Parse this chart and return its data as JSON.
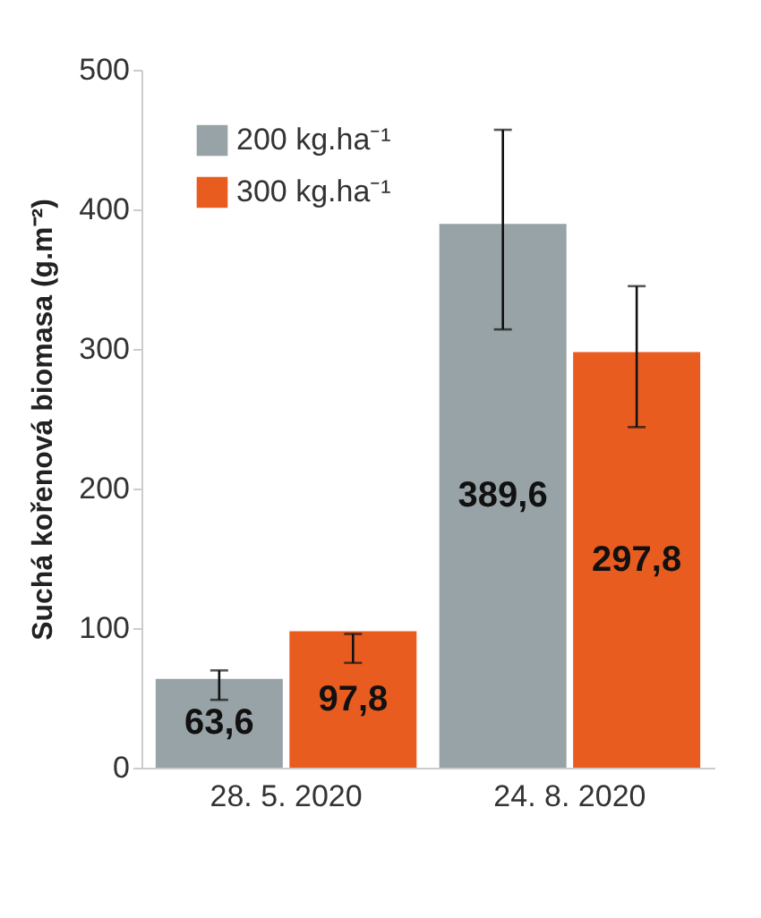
{
  "chart_data": {
    "type": "bar",
    "ylabel": "Suchá kořenová biomasa (g.m⁻²)",
    "categories": [
      "28. 5. 2020",
      "24. 8. 2020"
    ],
    "series": [
      {
        "name": "200 kg.ha⁻¹",
        "color": "#97a3a6",
        "values": [
          63.6,
          389.6
        ],
        "value_labels": [
          "63,6",
          "389,6"
        ],
        "errors": [
          [
            48.6,
            69.7
          ],
          [
            314,
            457
          ]
        ]
      },
      {
        "name": "300 kg.ha⁻¹",
        "color": "#e95c20",
        "values": [
          97.8,
          297.8
        ],
        "value_labels": [
          "97,8",
          "297,8"
        ],
        "errors": [
          [
            75.1,
            95.8
          ],
          [
            244,
            345
          ]
        ]
      }
    ],
    "ylim": [
      0,
      500
    ],
    "yticks": [
      0,
      100,
      200,
      300,
      400,
      500
    ],
    "grid": false,
    "legend": "top left"
  }
}
